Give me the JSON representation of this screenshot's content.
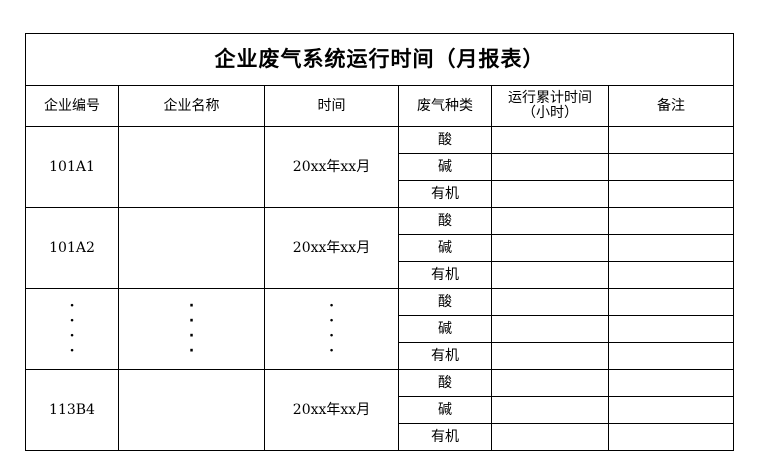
{
  "title": "企业废气系统运行时间（月报表）",
  "headers": [
    "企业编号",
    "企业名称",
    "时间",
    "废气种类",
    "运行累计时间\n（小时）",
    "备注"
  ],
  "gas_types": [
    "酸",
    "碱",
    "有机"
  ],
  "groups": [
    {
      "id": "101A1",
      "name": "",
      "time": "20xx年xx月"
    },
    {
      "id": "101A2",
      "name": "",
      "time": "20xx年xx月"
    },
    {
      "id": "·\n·\n·\n·",
      "name": "·\n·\n·\n·",
      "time": "·\n·\n·\n·"
    },
    {
      "id": "113B4",
      "name": "",
      "time": "20xx年xx月"
    }
  ]
}
